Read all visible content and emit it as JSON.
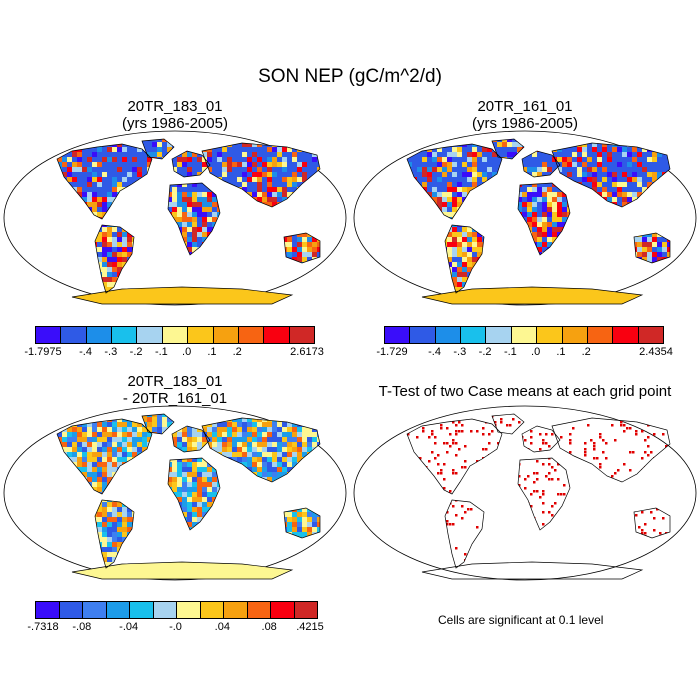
{
  "title": "SON NEP (gC/m^2/d)",
  "panels": [
    {
      "title_lines": [
        "20TR_183_01",
        "(yrs 1986-2005)"
      ],
      "colorbar": {
        "colors": [
          "#3a0dfa",
          "#2f5ae6",
          "#1d8ee9",
          "#19c0ec",
          "#a7d3f0",
          "#fdf792",
          "#fbc61b",
          "#f6a110",
          "#f76412",
          "#f90010",
          "#d02826"
        ],
        "labels": [
          "-1.7975",
          "-.4",
          "-.3",
          "-.2",
          "-.1",
          ".0",
          ".1",
          ".2",
          "2.6173"
        ]
      }
    },
    {
      "title_lines": [
        "20TR_161_01",
        "(yrs 1986-2005)"
      ],
      "colorbar": {
        "colors": [
          "#3a0dfa",
          "#2f5ae6",
          "#1d8ee9",
          "#19c0ec",
          "#a7d3f0",
          "#fdf792",
          "#fbc61b",
          "#f6a110",
          "#f76412",
          "#f90010",
          "#d02826"
        ],
        "labels": [
          "-1.729",
          "-.4",
          "-.3",
          "-.2",
          "-.1",
          ".0",
          ".1",
          ".2",
          "2.4354"
        ]
      }
    },
    {
      "title_lines": [
        "20TR_183_01",
        "- 20TR_161_01"
      ],
      "colorbar": {
        "colors": [
          "#3a0dfa",
          "#2f5ae6",
          "#3f7ff0",
          "#1d9ce9",
          "#19c0ec",
          "#a7d3f0",
          "#fdf792",
          "#fbc61b",
          "#f6a110",
          "#f76412",
          "#f90010",
          "#d02826"
        ],
        "labels": [
          "-.7318",
          "-.08",
          "-.04",
          "-.0",
          ".04",
          ".08",
          ".4215"
        ]
      }
    },
    {
      "title_lines": [
        "T-Test of two Case means at each grid point"
      ],
      "note": "Cells are significant at 0.1 level"
    }
  ],
  "colors": {
    "significant": "#e00000",
    "outline": "#000000"
  }
}
